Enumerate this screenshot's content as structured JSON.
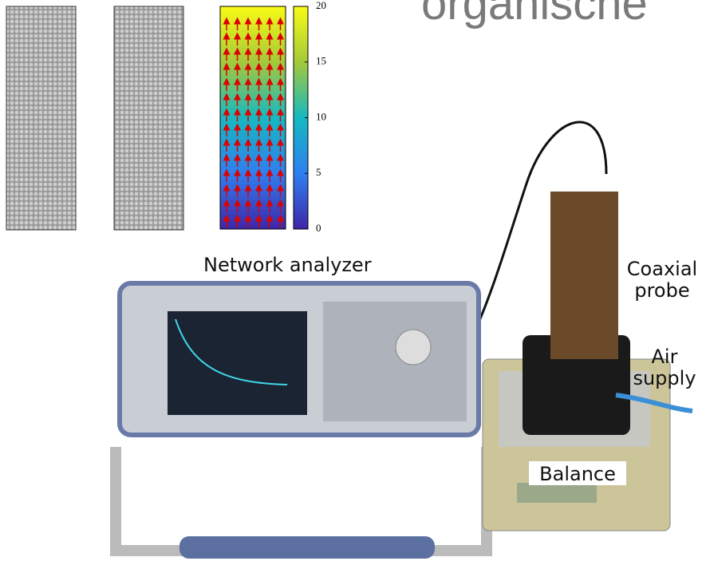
{
  "title_fragment": "organische",
  "colorbar": {
    "lim": [
      0,
      20
    ],
    "ticks": [
      0,
      5,
      10,
      15,
      20
    ]
  },
  "labels": {
    "network_analyzer": "Network analyzer",
    "coaxial_probe": [
      "Coaxial",
      "probe"
    ],
    "air_supply": [
      "Air",
      "supply"
    ],
    "balance": "Balance"
  }
}
